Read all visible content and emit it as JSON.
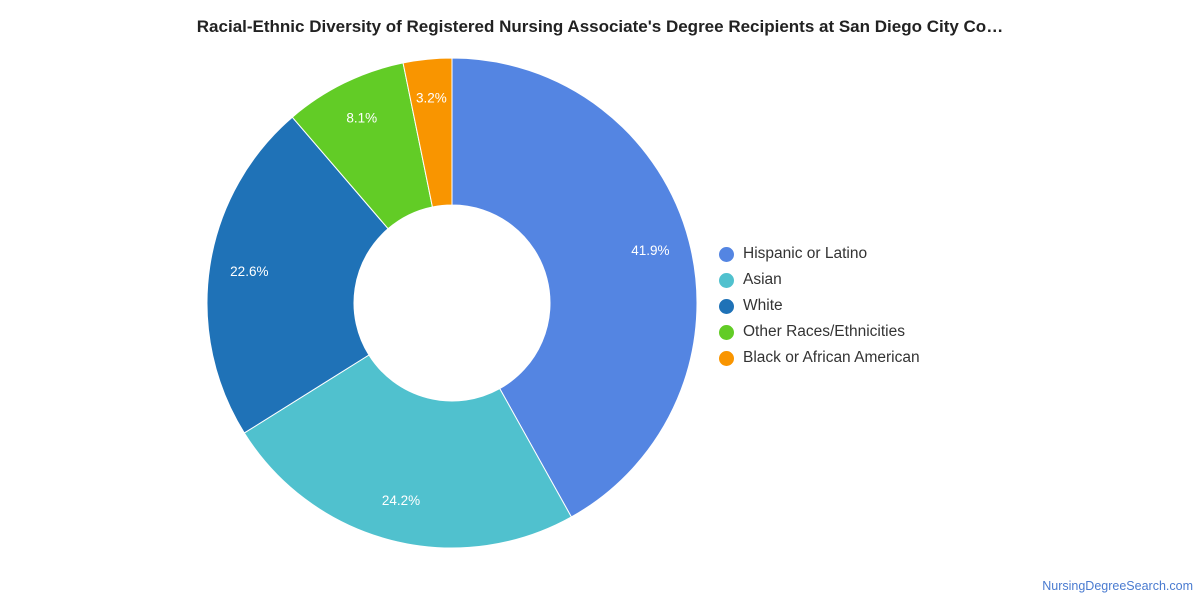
{
  "title": "Racial-Ethnic Diversity of Registered Nursing Associate's Degree Recipients at San Diego City Co…",
  "source": "NursingDegreeSearch.com",
  "chart_data": {
    "type": "pie",
    "donut": true,
    "title": "Racial-Ethnic Diversity of Registered Nursing Associate's Degree Recipients at San Diego City Co…",
    "legend_position": "right",
    "categories": [
      "Hispanic or Latino",
      "Asian",
      "White",
      "Other Races/Ethnicities",
      "Black or African American"
    ],
    "values": [
      41.9,
      24.2,
      22.6,
      8.1,
      3.2
    ],
    "labels": [
      "41.9%",
      "24.2%",
      "22.6%",
      "8.1%",
      "3.2%"
    ],
    "colors": [
      "#5485E2",
      "#50C1CE",
      "#1F72B7",
      "#62CC26",
      "#F99500"
    ]
  }
}
